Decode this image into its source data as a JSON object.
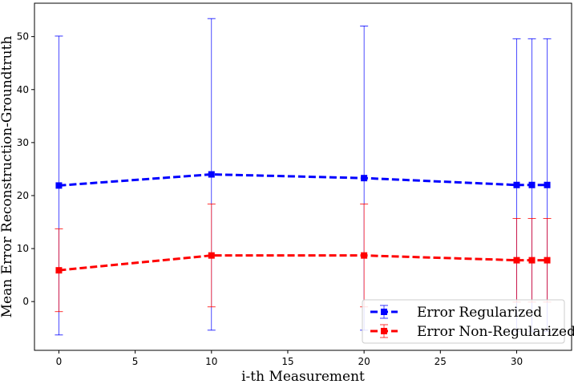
{
  "chart_data": {
    "type": "line",
    "title": "",
    "xlabel": "i-th Measurement",
    "ylabel": "Mean Error Reconstruction-Groundtruth",
    "xlim": [
      -1.6,
      33.6
    ],
    "ylim": [
      -9.2,
      56.3
    ],
    "xticks": [
      0,
      5,
      10,
      15,
      20,
      25,
      30
    ],
    "yticks": [
      0,
      10,
      20,
      30,
      40,
      50
    ],
    "x": [
      0,
      10,
      20,
      30,
      31,
      32
    ],
    "grid": false,
    "legend_position": "lower-right",
    "series": [
      {
        "name": "Error Regularized",
        "color": "#0000ff",
        "values": [
          21.9,
          24.0,
          23.3,
          22.0,
          22.0,
          22.0
        ],
        "error": [
          28.2,
          29.4,
          28.7,
          27.6,
          27.6,
          27.6
        ]
      },
      {
        "name": "Error Non-Regularized",
        "color": "#ff0000",
        "values": [
          5.9,
          8.7,
          8.7,
          7.8,
          7.8,
          7.8
        ],
        "error": [
          7.8,
          9.7,
          9.7,
          7.9,
          7.9,
          7.9
        ]
      }
    ]
  }
}
